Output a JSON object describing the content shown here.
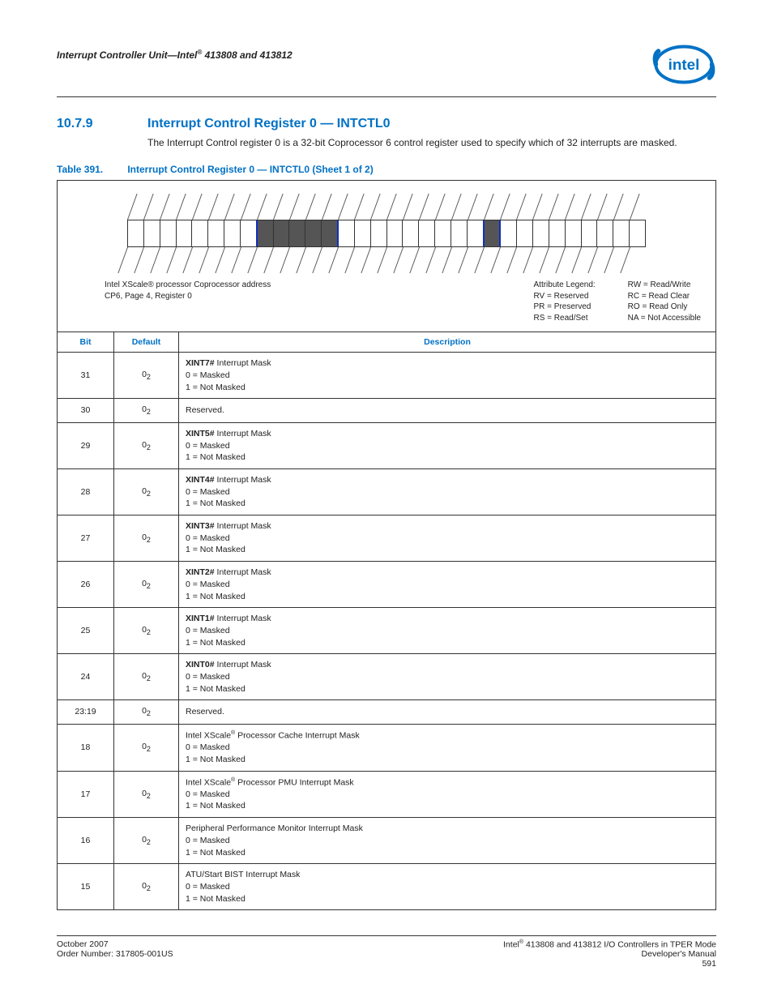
{
  "header": {
    "running": "Interrupt Controller Unit—Intel® 413808 and 413812"
  },
  "section": {
    "num": "10.7.9",
    "title": "Interrupt Control Register 0 — INTCTL0",
    "body": "The Interrupt Control register 0 is a 32-bit Coprocessor 6 control register used to specify which of 32 interrupts are masked."
  },
  "table_caption": {
    "label": "Table 391.",
    "text": "Interrupt Control Register 0 — INTCTL0 (Sheet 1 of 2)"
  },
  "diagram": {
    "addr_line1": "Intel XScale® processor Coprocessor address",
    "addr_line2": "CP6, Page 4, Register 0",
    "legend_hdr": "Attribute Legend:",
    "legend": [
      "RV = Reserved",
      "PR = Preserved",
      "RS = Read/Set"
    ],
    "rw": [
      "RW = Read/Write",
      "RC = Read Clear",
      "RO = Read Only",
      "NA = Not Accessible"
    ],
    "cells": [
      {
        "g": 0
      },
      {
        "g": 0
      },
      {
        "g": 0
      },
      {
        "g": 0
      },
      {
        "g": 0
      },
      {
        "g": 0
      },
      {
        "g": 0
      },
      {
        "g": 0,
        "b": 1
      },
      {
        "g": 1
      },
      {
        "g": 1
      },
      {
        "g": 1
      },
      {
        "g": 1
      },
      {
        "g": 1,
        "b": 1
      },
      {
        "g": 0
      },
      {
        "g": 0
      },
      {
        "g": 0
      },
      {
        "g": 0
      },
      {
        "g": 0
      },
      {
        "g": 0
      },
      {
        "g": 0
      },
      {
        "g": 0
      },
      {
        "g": 0,
        "b": 1
      },
      {
        "g": 1,
        "b": 1
      },
      {
        "g": 0
      },
      {
        "g": 0
      },
      {
        "g": 0
      },
      {
        "g": 0
      },
      {
        "g": 0
      },
      {
        "g": 0
      },
      {
        "g": 0
      },
      {
        "g": 0
      },
      {
        "g": 0
      }
    ]
  },
  "columns": {
    "bit": "Bit",
    "default": "Default",
    "desc": "Description"
  },
  "rows": [
    {
      "bit": "31",
      "def": "0",
      "sub": "2",
      "lines": [
        "<b>XINT7#</b> Interrupt Mask",
        "0 = Masked",
        "1 = Not Masked"
      ]
    },
    {
      "bit": "30",
      "def": "0",
      "sub": "2",
      "lines": [
        "Reserved."
      ]
    },
    {
      "bit": "29",
      "def": "0",
      "sub": "2",
      "lines": [
        "<b>XINT5#</b> Interrupt Mask",
        "0 = Masked",
        "1 = Not Masked"
      ]
    },
    {
      "bit": "28",
      "def": "0",
      "sub": "2",
      "lines": [
        "<b>XINT4#</b> Interrupt Mask",
        "0 = Masked",
        "1 = Not Masked"
      ]
    },
    {
      "bit": "27",
      "def": "0",
      "sub": "2",
      "lines": [
        "<b>XINT3#</b> Interrupt Mask",
        "0 = Masked",
        "1 = Not Masked"
      ]
    },
    {
      "bit": "26",
      "def": "0",
      "sub": "2",
      "lines": [
        "<b>XINT2#</b> Interrupt Mask",
        "0 = Masked",
        "1 = Not Masked"
      ]
    },
    {
      "bit": "25",
      "def": "0",
      "sub": "2",
      "lines": [
        "<b>XINT1#</b> Interrupt Mask",
        "0 = Masked",
        "1 = Not Masked"
      ]
    },
    {
      "bit": "24",
      "def": "0",
      "sub": "2",
      "lines": [
        "<b>XINT0#</b> Interrupt Mask",
        "0 = Masked",
        "1 = Not Masked"
      ]
    },
    {
      "bit": "23:19",
      "def": "0",
      "sub": "2",
      "lines": [
        "Reserved."
      ]
    },
    {
      "bit": "18",
      "def": "0",
      "sub": "2",
      "lines": [
        "Intel XScale<sup class='reg-mark'>®</sup> Processor Cache Interrupt Mask",
        "0 = Masked",
        "1 = Not Masked"
      ]
    },
    {
      "bit": "17",
      "def": "0",
      "sub": "2",
      "lines": [
        "Intel XScale<sup class='reg-mark'>®</sup> Processor PMU Interrupt Mask",
        "0 = Masked",
        "1 = Not Masked"
      ]
    },
    {
      "bit": "16",
      "def": "0",
      "sub": "2",
      "lines": [
        "Peripheral Performance Monitor Interrupt Mask",
        "0 = Masked",
        "1 = Not Masked"
      ]
    },
    {
      "bit": "15",
      "def": "0",
      "sub": "2",
      "lines": [
        "ATU/Start BIST Interrupt Mask",
        "0 = Masked",
        "1 = Not Masked"
      ]
    }
  ],
  "footer": {
    "left1": "October 2007",
    "left2": "Order Number: 317805-001US",
    "right1": "Intel® 413808 and 413812 I/O Controllers in TPER Mode",
    "right2": "Developer's Manual",
    "right3": "591"
  }
}
